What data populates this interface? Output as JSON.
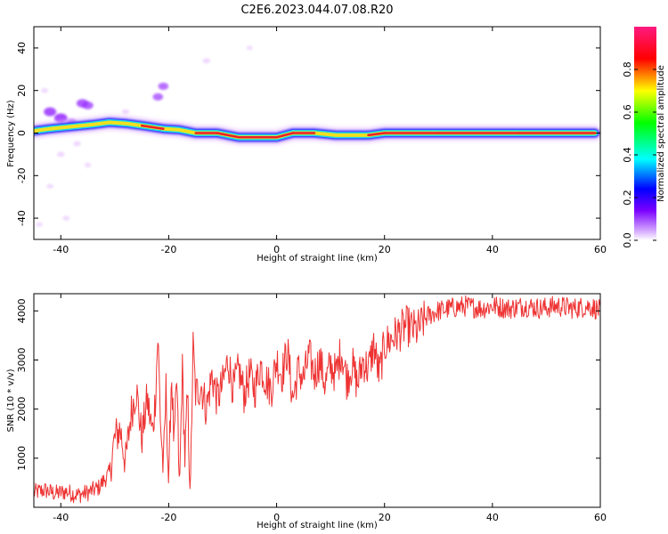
{
  "title": "C2E6.2023.044.07.08.R20",
  "colors": {
    "snr_line": "#ee3333",
    "axis": "#000000",
    "ridge_core": "#e8202a",
    "ridge_mid": "#f0e020",
    "ridge_outer": "#18d8e8",
    "ridge_edge": "#2020ff",
    "scatter_faint": "#e0b0ff",
    "scatter_mid": "#9a30ff"
  },
  "chart_data": [
    {
      "type": "heatmap",
      "name": "spectrogram",
      "xlabel": "Height of straight line (km)",
      "ylabel": "Frequency (Hz)",
      "xlim": [
        -45,
        60
      ],
      "ylim": [
        -50,
        50
      ],
      "xticks": [
        -40,
        -20,
        0,
        20,
        40,
        60
      ],
      "yticks": [
        -40,
        -20,
        0,
        20,
        40
      ],
      "xtick_labels": [
        "-40",
        "-20",
        "0",
        "20",
        "40",
        "60"
      ],
      "ytick_labels": [
        "-40",
        "-20",
        "0",
        "20",
        "40"
      ],
      "colorbar": {
        "label": "Normalized spectral amplitude",
        "range": [
          0,
          1
        ],
        "ticks": [
          0.0,
          0.2,
          0.4,
          0.6,
          0.8
        ],
        "tick_labels": [
          "0.0",
          "0.2",
          "0.4",
          "0.6",
          "0.8"
        ],
        "colormap": [
          "#ffffff",
          "#8000ff",
          "#0000ff",
          "#00ffff",
          "#00ff00",
          "#ffff00",
          "#ff0000",
          "#ff0080"
        ]
      },
      "ridge": [
        {
          "x": -45,
          "y": 1,
          "a": 0.5
        },
        {
          "x": -42,
          "y": 2,
          "a": 0.55
        },
        {
          "x": -38,
          "y": 3,
          "a": 0.5
        },
        {
          "x": -34,
          "y": 4,
          "a": 0.55
        },
        {
          "x": -31,
          "y": 5,
          "a": 0.85
        },
        {
          "x": -28,
          "y": 4.5,
          "a": 0.6
        },
        {
          "x": -25,
          "y": 3.5,
          "a": 0.75
        },
        {
          "x": -21,
          "y": 2,
          "a": 0.8
        },
        {
          "x": -18,
          "y": 1.5,
          "a": 0.55
        },
        {
          "x": -15,
          "y": 0,
          "a": 0.95
        },
        {
          "x": -11,
          "y": 0,
          "a": 0.9
        },
        {
          "x": -7,
          "y": -2,
          "a": 0.85
        },
        {
          "x": -3,
          "y": -2,
          "a": 0.85
        },
        {
          "x": 0,
          "y": -2,
          "a": 0.8
        },
        {
          "x": 3,
          "y": 0,
          "a": 0.75
        },
        {
          "x": 7,
          "y": 0,
          "a": 0.9
        },
        {
          "x": 11,
          "y": -1,
          "a": 0.6
        },
        {
          "x": 14,
          "y": -1,
          "a": 0.7
        },
        {
          "x": 17,
          "y": -1,
          "a": 0.75
        },
        {
          "x": 20,
          "y": 0,
          "a": 0.9
        },
        {
          "x": 30,
          "y": 0,
          "a": 0.95
        },
        {
          "x": 45,
          "y": 0,
          "a": 0.95
        },
        {
          "x": 59,
          "y": 0,
          "a": 0.95
        }
      ],
      "scatter": [
        {
          "x": -42,
          "y": 10,
          "a": 0.5
        },
        {
          "x": -40,
          "y": 7,
          "a": 0.55
        },
        {
          "x": -36,
          "y": 14,
          "a": 0.45
        },
        {
          "x": -35,
          "y": 13,
          "a": 0.4
        },
        {
          "x": -38,
          "y": 5,
          "a": 0.35
        },
        {
          "x": -21,
          "y": 22,
          "a": 0.35
        },
        {
          "x": -22,
          "y": 17,
          "a": 0.35
        },
        {
          "x": -13,
          "y": 34,
          "a": 0.15
        },
        {
          "x": -40,
          "y": -10,
          "a": 0.15
        },
        {
          "x": -42,
          "y": -25,
          "a": 0.1
        },
        {
          "x": -37,
          "y": -5,
          "a": 0.15
        },
        {
          "x": -43,
          "y": 20,
          "a": 0.12
        },
        {
          "x": -35,
          "y": -15,
          "a": 0.1
        },
        {
          "x": -28,
          "y": 10,
          "a": 0.15
        },
        {
          "x": -44,
          "y": -43,
          "a": 0.1
        },
        {
          "x": -39,
          "y": -40,
          "a": 0.12
        },
        {
          "x": -5,
          "y": 40,
          "a": 0.08
        }
      ]
    },
    {
      "type": "line",
      "name": "snr",
      "xlabel": "Height of straight line (km)",
      "ylabel": "SNR (10 * v/v)",
      "xlim": [
        -45,
        60
      ],
      "ylim": [
        0,
        4350
      ],
      "xticks": [
        -40,
        -20,
        0,
        20,
        40,
        60
      ],
      "yticks": [
        1000,
        2000,
        3000,
        4000
      ],
      "xtick_labels": [
        "-40",
        "-20",
        "0",
        "20",
        "40",
        "60"
      ],
      "ytick_labels": [
        "1000",
        "2000",
        "3000",
        "4000"
      ],
      "series": [
        {
          "x": [
            -45,
            -43,
            -41,
            -39,
            -37,
            -35,
            -33,
            -31,
            -30,
            -29,
            -28,
            -27,
            -26,
            -25,
            -24,
            -23,
            -22.5,
            -22,
            -21.5,
            -21,
            -20.5,
            -20,
            -19.5,
            -19,
            -18.5,
            -18,
            -17.5,
            -17,
            -16.5,
            -16,
            -15.5,
            -15,
            -14,
            -13,
            -12,
            -11,
            -10,
            -9,
            -8,
            -7,
            -6,
            -5,
            -4,
            -3,
            -2,
            -1,
            0,
            1,
            2,
            3,
            4,
            5,
            6,
            7,
            8,
            9,
            10,
            11,
            12,
            13,
            14,
            15,
            16,
            17,
            18,
            19,
            20,
            22,
            24,
            26,
            28,
            30,
            32,
            35,
            38,
            40,
            43,
            46,
            49,
            52,
            55,
            58,
            60
          ],
          "y": [
            300,
            350,
            280,
            320,
            250,
            300,
            400,
            700,
            1400,
            1600,
            900,
            1900,
            2400,
            1400,
            2200,
            1500,
            2200,
            3500,
            1700,
            700,
            2400,
            400,
            2800,
            1200,
            2600,
            300,
            2900,
            1000,
            2300,
            200,
            3300,
            2300,
            2500,
            2000,
            2700,
            2200,
            2500,
            3000,
            2400,
            2800,
            2300,
            2700,
            2400,
            2900,
            2600,
            2400,
            3000,
            2700,
            3200,
            2200,
            2800,
            2600,
            3100,
            2700,
            3000,
            2500,
            2900,
            2700,
            3200,
            2600,
            2900,
            2500,
            3000,
            2800,
            3300,
            2700,
            3300,
            3500,
            3700,
            3600,
            3900,
            4000,
            4050,
            4100,
            4050,
            4100,
            4050,
            4100,
            4050,
            4100,
            4050,
            4100,
            4000
          ]
        }
      ]
    }
  ]
}
